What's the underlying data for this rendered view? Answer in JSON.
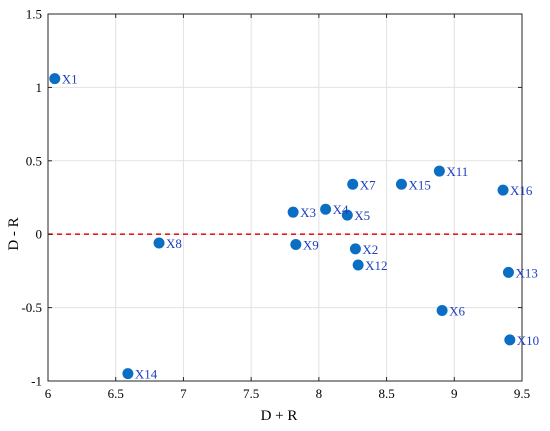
{
  "chart_data": {
    "type": "scatter",
    "title": "",
    "xlabel": "D + R",
    "ylabel": "D - R",
    "xlim": [
      6,
      9.5
    ],
    "ylim": [
      -1,
      1.5
    ],
    "xticks": [
      6,
      6.5,
      7,
      7.5,
      8,
      8.5,
      9,
      9.5
    ],
    "xtick_labels": [
      "6",
      "6.5",
      "7",
      "7.5",
      "8",
      "8.5",
      "9",
      "9.5"
    ],
    "yticks": [
      -1,
      -0.5,
      0,
      0.5,
      1,
      1.5
    ],
    "ytick_labels": [
      "-1",
      "-0.5",
      "0",
      "0.5",
      "1",
      "1.5"
    ],
    "grid": true,
    "reference_line": {
      "y": 0,
      "style": "dashed",
      "color": "#e02020"
    },
    "marker_color": "#0a6fc2",
    "label_color": "#1f3fbf",
    "points": [
      {
        "label": "X1",
        "x": 6.05,
        "y": 1.06
      },
      {
        "label": "X2",
        "x": 8.27,
        "y": -0.1
      },
      {
        "label": "X3",
        "x": 7.81,
        "y": 0.15
      },
      {
        "label": "X4",
        "x": 8.05,
        "y": 0.17
      },
      {
        "label": "X5",
        "x": 8.21,
        "y": 0.13
      },
      {
        "label": "X6",
        "x": 8.91,
        "y": -0.52
      },
      {
        "label": "X7",
        "x": 8.25,
        "y": 0.34
      },
      {
        "label": "X8",
        "x": 6.82,
        "y": -0.06
      },
      {
        "label": "X9",
        "x": 7.83,
        "y": -0.07
      },
      {
        "label": "X10",
        "x": 9.41,
        "y": -0.72
      },
      {
        "label": "X11",
        "x": 8.89,
        "y": 0.43
      },
      {
        "label": "X12",
        "x": 8.29,
        "y": -0.21
      },
      {
        "label": "X13",
        "x": 9.4,
        "y": -0.26
      },
      {
        "label": "X14",
        "x": 6.59,
        "y": -0.95
      },
      {
        "label": "X15",
        "x": 8.61,
        "y": 0.34
      },
      {
        "label": "X16",
        "x": 9.36,
        "y": 0.3
      }
    ]
  }
}
